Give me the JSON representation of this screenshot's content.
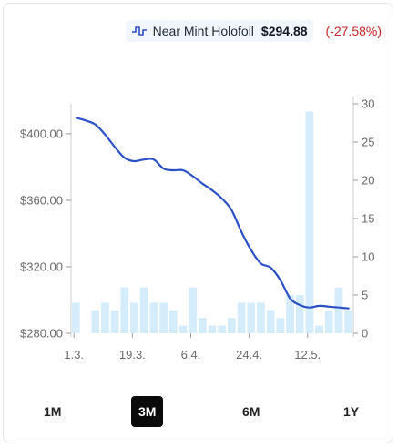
{
  "legend": {
    "name": "Near Mint Holofoil",
    "price": "$294.88",
    "change": "(-27.58%)"
  },
  "ranges": [
    {
      "label": "1M",
      "active": false
    },
    {
      "label": "3M",
      "active": true
    },
    {
      "label": "6M",
      "active": false
    },
    {
      "label": "1Y",
      "active": false
    }
  ],
  "colors": {
    "line": "#2b50c8",
    "bars": "#d4ecfb",
    "change": "#c62828",
    "active_range": "#0a0a0a"
  },
  "chart_data": {
    "type": "line",
    "x_tick_labels": [
      "1.3.",
      "19.3.",
      "6.4.",
      "24.4.",
      "12.5."
    ],
    "y_left": {
      "ticks": [
        280,
        320,
        360,
        400
      ],
      "tick_labels": [
        "$280.00",
        "$320.00",
        "$360.00",
        "$400.00"
      ],
      "ylim": [
        280,
        418
      ]
    },
    "y_right": {
      "ticks": [
        0,
        5,
        10,
        15,
        20,
        25,
        30
      ],
      "tick_labels": [
        "0",
        "5",
        "10",
        "15",
        "20",
        "25",
        "30"
      ],
      "ylim": [
        0,
        30
      ]
    },
    "price_series": {
      "name": "Near Mint Holofoil",
      "values": [
        409.5,
        408,
        405.5,
        399.5,
        392,
        385.5,
        383.5,
        384.5,
        384.5,
        379,
        378,
        378,
        374.5,
        370,
        366,
        361,
        354,
        341,
        330,
        322,
        319.5,
        312,
        301,
        297,
        295.5,
        296.5,
        296,
        295.5,
        295
      ]
    },
    "volume_series": {
      "name": "",
      "values": [
        4,
        0,
        3,
        4,
        3,
        6,
        4,
        6,
        4,
        4,
        3,
        1,
        6,
        2,
        1,
        1,
        2,
        4,
        4,
        4,
        3,
        2,
        5,
        5,
        29,
        1,
        3,
        6,
        3
      ]
    },
    "grid": false,
    "legend_position": "top-right"
  }
}
